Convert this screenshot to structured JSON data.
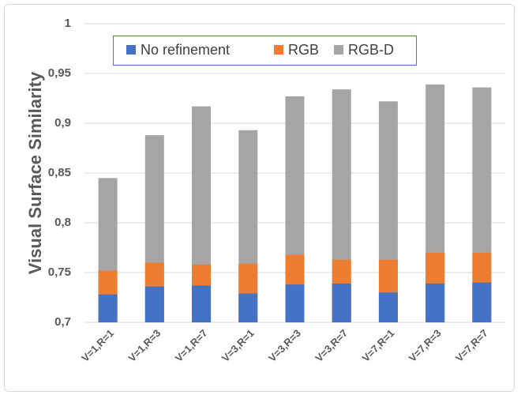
{
  "chart_data": {
    "type": "bar",
    "ylabel": "Visual Surface Similarity",
    "categories": [
      "V=1,R=1",
      "V=1,R=3",
      "V=1,R=7",
      "V=3,R=1",
      "V=3,R=3",
      "V=3,R=7",
      "V=7,R=1",
      "V=7,R=3",
      "V=7,R=7"
    ],
    "series": [
      {
        "name": "No refinement",
        "color": "#4472c4",
        "values": [
          0.728,
          0.736,
          0.737,
          0.729,
          0.738,
          0.739,
          0.73,
          0.739,
          0.74
        ]
      },
      {
        "name": "RGB",
        "color": "#ed7d31",
        "values": [
          0.752,
          0.76,
          0.758,
          0.759,
          0.768,
          0.763,
          0.763,
          0.77,
          0.77
        ]
      },
      {
        "name": "RGB-D",
        "color": "#a5a5a5",
        "values": [
          0.845,
          0.888,
          0.917,
          0.893,
          0.927,
          0.934,
          0.922,
          0.939,
          0.936
        ]
      }
    ],
    "ylim": [
      0.7,
      1
    ],
    "yticks": [
      {
        "value": 0.7,
        "label": "0,7"
      },
      {
        "value": 0.75,
        "label": "0,75"
      },
      {
        "value": 0.8,
        "label": "0,8"
      },
      {
        "value": 0.85,
        "label": "0,85"
      },
      {
        "value": 0.9,
        "label": "0,9"
      },
      {
        "value": 0.95,
        "label": "0,95"
      },
      1
    ],
    "grid": true,
    "legend": "top"
  }
}
